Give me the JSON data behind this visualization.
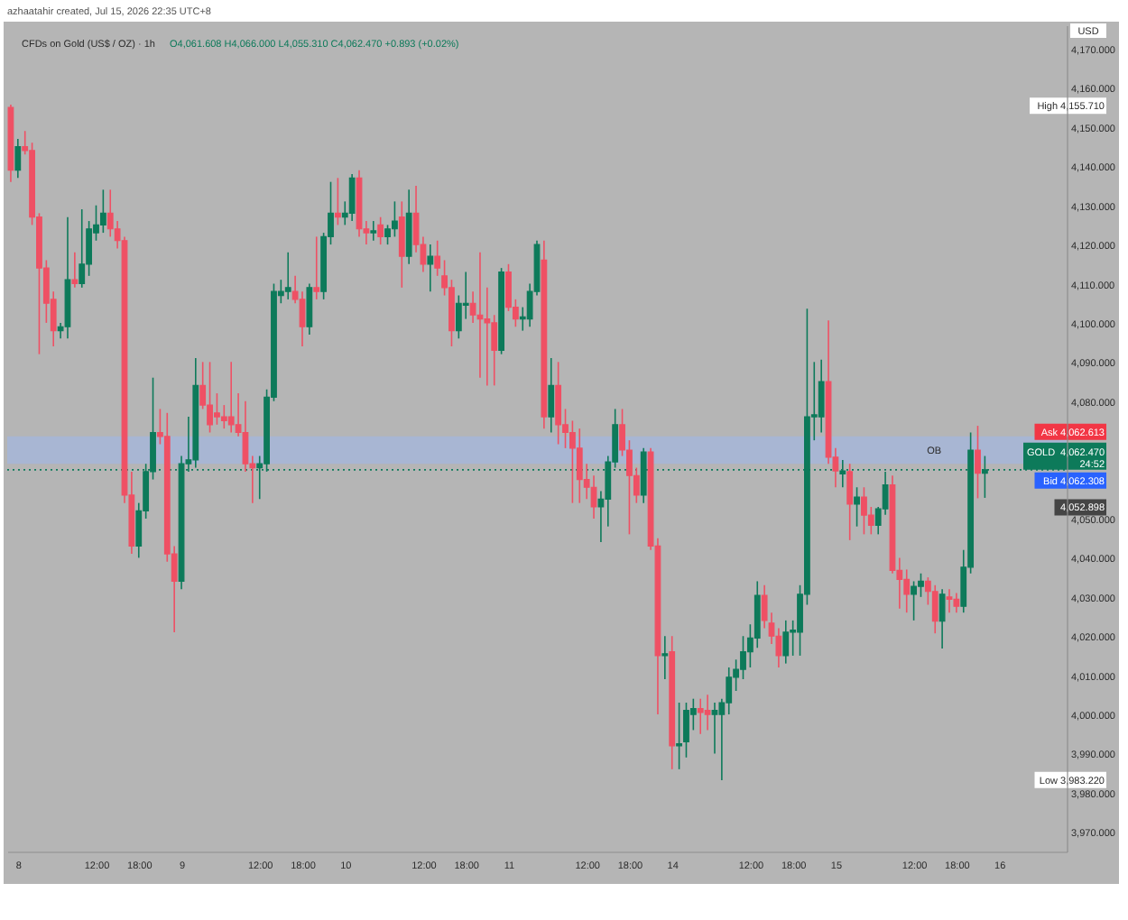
{
  "chart_data": {
    "type": "candlestick",
    "title": "CFDs on Gold (US$ / OZ) · 1h",
    "categories": [
      null,
      "8",
      null,
      null,
      null,
      null,
      null,
      null,
      null,
      null,
      null,
      null,
      "12:00",
      null,
      null,
      null,
      null,
      null,
      "18:00",
      null,
      null,
      null,
      null,
      null,
      "9",
      null,
      null,
      null,
      null,
      null,
      null,
      null,
      null,
      null,
      null,
      "12:00",
      null,
      null,
      null,
      null,
      null,
      "18:00",
      null,
      null,
      null,
      null,
      null,
      "10",
      null,
      null,
      null,
      null,
      null,
      null,
      null,
      null,
      null,
      null,
      "12:00",
      null,
      null,
      null,
      null,
      null,
      "18:00",
      null,
      null,
      null,
      null,
      null,
      "11",
      null,
      null,
      null,
      null,
      null,
      null,
      null,
      null,
      null,
      null,
      "12:00",
      null,
      null,
      null,
      null,
      null,
      "18:00",
      null,
      null,
      null,
      null,
      null,
      "14",
      null,
      null,
      null,
      null,
      null,
      null,
      null,
      null,
      null,
      null,
      "12:00",
      null,
      null,
      null,
      null,
      null,
      "18:00",
      null,
      null,
      null,
      null,
      null,
      "15",
      null,
      null,
      null,
      null,
      null,
      null,
      null,
      null,
      null,
      null,
      "12:00",
      null,
      null,
      null,
      null,
      null,
      "18:00",
      null,
      null,
      null,
      null,
      null,
      "16",
      null,
      null,
      null,
      null,
      null,
      null,
      null,
      null,
      null
    ],
    "ohlc": [
      [
        4155,
        4155.71,
        4136,
        4139
      ],
      [
        4139,
        4147,
        4137,
        4145
      ],
      [
        4145,
        4149,
        4143,
        4144
      ],
      [
        4144,
        4146,
        4125,
        4127
      ],
      [
        4127,
        4128,
        4092,
        4114
      ],
      [
        4114,
        4116,
        4100,
        4105
      ],
      [
        4106,
        4108,
        4094,
        4098
      ],
      [
        4098,
        4100,
        4096,
        4099
      ],
      [
        4099,
        4127,
        4096,
        4111
      ],
      [
        4111,
        4118,
        4109,
        4110
      ],
      [
        4110,
        4129,
        4109,
        4115
      ],
      [
        4115,
        4126,
        4112,
        4124
      ],
      [
        4123,
        4130,
        4121,
        4125
      ],
      [
        4125,
        4134,
        4123,
        4128
      ],
      [
        4128,
        4134,
        4122,
        4124
      ],
      [
        4124,
        4126,
        4119,
        4121
      ],
      [
        4121,
        4122,
        4054,
        4056
      ],
      [
        4056,
        4062,
        4041,
        4043
      ],
      [
        4043,
        4054,
        4040,
        4052
      ],
      [
        4052,
        4064,
        4050,
        4062
      ],
      [
        4062,
        4086,
        4060,
        4072
      ],
      [
        4072,
        4078,
        4069,
        4071
      ],
      [
        4071,
        4077,
        4039,
        4041
      ],
      [
        4041,
        4043,
        4021,
        4034
      ],
      [
        4034,
        4066,
        4032,
        4064
      ],
      [
        4064,
        4076,
        4062,
        4065
      ],
      [
        4065,
        4091,
        4063,
        4084
      ],
      [
        4084,
        4090,
        4078,
        4079
      ],
      [
        4079,
        4090,
        4072,
        4074
      ],
      [
        4077,
        4082,
        4074,
        4076
      ],
      [
        4076,
        4079,
        4073,
        4075
      ],
      [
        4076,
        4090,
        4072,
        4074
      ],
      [
        4074,
        4082,
        4071,
        4072
      ],
      [
        4072,
        4080,
        4062,
        4064
      ],
      [
        4064,
        4066,
        4054,
        4063
      ],
      [
        4063,
        4066,
        4055,
        4064
      ],
      [
        4064,
        4083,
        4062,
        4081
      ],
      [
        4081,
        4110,
        4080,
        4108
      ],
      [
        4107,
        4111,
        4105,
        4108
      ],
      [
        4108,
        4118,
        4106,
        4109
      ],
      [
        4108,
        4112,
        4105,
        4106
      ],
      [
        4106,
        4108,
        4094,
        4099
      ],
      [
        4099,
        4110,
        4097,
        4109
      ],
      [
        4109,
        4122,
        4106,
        4108
      ],
      [
        4108,
        4123,
        4106,
        4122
      ],
      [
        4122,
        4136,
        4120,
        4128
      ],
      [
        4128,
        4137,
        4125,
        4127
      ],
      [
        4127,
        4131,
        4125,
        4128
      ],
      [
        4128,
        4138,
        4126,
        4137
      ],
      [
        4137,
        4139,
        4122,
        4124
      ],
      [
        4124,
        4126,
        4120,
        4123
      ],
      [
        4123,
        4126,
        4121,
        4123.5
      ],
      [
        4125,
        4127,
        4120,
        4122
      ],
      [
        4122,
        4125,
        4120,
        4124
      ],
      [
        4124,
        4131,
        4122,
        4126
      ],
      [
        4127,
        4131,
        4109,
        4117
      ],
      [
        4117,
        4134,
        4115,
        4128
      ],
      [
        4128,
        4135,
        4118,
        4120
      ],
      [
        4120,
        4122,
        4113,
        4115
      ],
      [
        4115,
        4120,
        4108,
        4117
      ],
      [
        4117,
        4121,
        4112,
        4114
      ],
      [
        4112,
        4116,
        4107,
        4109
      ],
      [
        4109,
        4111,
        4094,
        4098
      ],
      [
        4098,
        4107,
        4096,
        4105
      ],
      [
        4104.5,
        4113,
        4101,
        4105
      ],
      [
        4105,
        4108,
        4100,
        4102
      ],
      [
        4102,
        4118,
        4086,
        4101
      ],
      [
        4101,
        4109,
        4084,
        4100
      ],
      [
        4100,
        4102,
        4084,
        4093
      ],
      [
        4093,
        4114,
        4092,
        4113
      ],
      [
        4113,
        4115,
        4103,
        4104
      ],
      [
        4104,
        4106,
        4099,
        4101
      ],
      [
        4101,
        4104,
        4098,
        4101.5
      ],
      [
        4101,
        4110,
        4099,
        4108
      ],
      [
        4108,
        4121,
        4107,
        4120
      ],
      [
        4116,
        4121,
        4073,
        4076
      ],
      [
        4076,
        4091,
        4072,
        4084
      ],
      [
        4084,
        4090,
        4069,
        4074
      ],
      [
        4074,
        4078,
        4068,
        4072
      ],
      [
        4072,
        4075,
        4054,
        4068
      ],
      [
        4068,
        4073,
        4054,
        4060
      ],
      [
        4060,
        4064,
        4055,
        4058
      ],
      [
        4058,
        4061,
        4050,
        4053
      ],
      [
        4053,
        4057,
        4044,
        4055
      ],
      [
        4055,
        4066,
        4048,
        4064.5
      ],
      [
        4064.5,
        4078,
        4063,
        4074
      ],
      [
        4074,
        4078,
        4066,
        4067.5
      ],
      [
        4067.5,
        4070,
        4046,
        4061
      ],
      [
        4061,
        4063,
        4054,
        4056
      ],
      [
        4056,
        4068,
        4054,
        4067
      ],
      [
        4067,
        4068,
        4042,
        4043
      ],
      [
        4043,
        4045,
        4000,
        4015
      ],
      [
        4015,
        4020,
        4009,
        4015.5
      ],
      [
        4016,
        4020,
        3986,
        3992
      ],
      [
        3992,
        4003,
        3986,
        3992.5
      ],
      [
        3993,
        4003,
        3989,
        4001
      ],
      [
        4000,
        4004,
        3996,
        4001.5
      ],
      [
        4001.5,
        4004,
        3995,
        4000.5
      ],
      [
        4001,
        4005,
        3996,
        4000
      ],
      [
        4000,
        4003,
        3990,
        4001
      ],
      [
        4000,
        4004,
        3983.22,
        4003
      ],
      [
        4003,
        4012,
        4000,
        4009.5
      ],
      [
        4009.5,
        4014,
        4006,
        4011.5
      ],
      [
        4011.5,
        4020,
        4009,
        4016
      ],
      [
        4016,
        4023,
        4012,
        4019.5
      ],
      [
        4019.5,
        4034,
        4017,
        4030.4
      ],
      [
        4030.4,
        4033,
        4022,
        4024
      ],
      [
        4023.3,
        4026,
        4018,
        4020
      ],
      [
        4020,
        4022,
        4012,
        4015
      ],
      [
        4015,
        4024,
        4013,
        4021
      ],
      [
        4021,
        4024,
        4015,
        4021.5
      ],
      [
        4021,
        4033,
        4015,
        4030.7
      ],
      [
        4030.7,
        4103.6,
        4028,
        4076
      ],
      [
        4076,
        4090,
        4070,
        4076.5
      ],
      [
        4076,
        4090.6,
        4072,
        4085
      ],
      [
        4085,
        4100.6,
        4064,
        4065.7
      ],
      [
        4065.7,
        4068,
        4058,
        4062.2
      ],
      [
        4061.4,
        4065,
        4058,
        4062.2
      ],
      [
        4062,
        4064,
        4044.5,
        4053.7
      ],
      [
        4053.7,
        4058,
        4048,
        4055.5
      ],
      [
        4055.5,
        4058,
        4046,
        4050.9
      ],
      [
        4050.9,
        4053,
        4046,
        4048.3
      ],
      [
        4048.3,
        4053,
        4046,
        4052.5
      ],
      [
        4052.5,
        4062,
        4051,
        4058.6
      ],
      [
        4058.6,
        4061,
        4036,
        4036.8
      ],
      [
        4036.8,
        4040,
        4027,
        4034.5
      ],
      [
        4034.5,
        4037,
        4026,
        4030.7
      ],
      [
        4030.7,
        4034,
        4024,
        4032.7
      ],
      [
        4032.7,
        4036,
        4030,
        4034
      ],
      [
        4034,
        4035,
        4028,
        4031.4
      ],
      [
        4031.4,
        4033,
        4020.7,
        4023.8
      ],
      [
        4023.8,
        4032,
        4016.8,
        4030.7
      ],
      [
        4030,
        4032,
        4026,
        4029.4
      ],
      [
        4029.4,
        4031,
        4026,
        4027.6
      ],
      [
        4027.6,
        4042,
        4026,
        4037.6
      ],
      [
        4037.6,
        4072,
        4036,
        4067.5
      ],
      [
        4067.5,
        4073.7,
        4055.2,
        4061.6
      ],
      [
        4061.608,
        4066,
        4055.31,
        4062.47
      ],
      null,
      null,
      null,
      null,
      null,
      null,
      null,
      null,
      null,
      null,
      null
    ],
    "colors": [
      "#ef5064",
      "#0d7a5a",
      "#ef5064",
      "#ef5064",
      "#ef5064",
      "#ef5064",
      "#ef5064",
      "#0d7a5a",
      "#0d7a5a",
      "#ef5064",
      "#0d7a5a",
      "#0d7a5a",
      "#0d7a5a",
      "#0d7a5a",
      "#ef5064",
      "#ef5064",
      "#ef5064",
      "#ef5064",
      "#0d7a5a",
      "#0d7a5a",
      "#0d7a5a",
      "#ef5064",
      "#ef5064",
      "#ef5064",
      "#0d7a5a",
      "#0d7a5a",
      "#0d7a5a",
      "#ef5064",
      "#ef5064",
      "#ef5064",
      "#ef5064",
      "#ef5064",
      "#ef5064",
      "#ef5064",
      "#ef5064",
      "#0d7a5a",
      "#0d7a5a",
      "#0d7a5a",
      "#0d7a5a",
      "#0d7a5a",
      "#ef5064",
      "#ef5064",
      "#0d7a5a",
      "#ef5064",
      "#0d7a5a",
      "#0d7a5a",
      "#ef5064",
      "#0d7a5a",
      "#0d7a5a",
      "#ef5064",
      "#ef5064",
      "#0d7a5a",
      "#ef5064",
      "#0d7a5a",
      "#0d7a5a",
      "#ef5064",
      "#0d7a5a",
      "#ef5064",
      "#ef5064",
      "#0d7a5a",
      "#ef5064",
      "#ef5064",
      "#ef5064",
      "#0d7a5a",
      "#0d7a5a",
      "#ef5064",
      "#ef5064",
      "#ef5064",
      "#ef5064",
      "#0d7a5a",
      "#ef5064",
      "#ef5064",
      "#0d7a5a",
      "#0d7a5a",
      "#0d7a5a",
      "#ef5064",
      "#0d7a5a",
      "#ef5064",
      "#ef5064",
      "#ef5064",
      "#ef5064",
      "#ef5064",
      "#ef5064",
      "#0d7a5a",
      "#0d7a5a",
      "#0d7a5a",
      "#ef5064",
      "#ef5064",
      "#ef5064",
      "#0d7a5a",
      "#ef5064",
      "#ef5064",
      "#0d7a5a",
      "#ef5064",
      "#0d7a5a",
      "#0d7a5a",
      "#0d7a5a",
      "#ef5064",
      "#ef5064",
      "#0d7a5a",
      "#0d7a5a",
      "#0d7a5a",
      "#0d7a5a",
      "#0d7a5a",
      "#0d7a5a",
      "#0d7a5a",
      "#ef5064",
      "#ef5064",
      "#ef5064",
      "#0d7a5a",
      "#0d7a5a",
      "#0d7a5a",
      "#0d7a5a",
      "#0d7a5a",
      "#0d7a5a",
      "#ef5064",
      "#ef5064",
      "#0d7a5a",
      "#ef5064",
      "#0d7a5a",
      "#ef5064",
      "#ef5064",
      "#0d7a5a",
      "#0d7a5a",
      "#ef5064",
      "#ef5064",
      "#ef5064",
      "#0d7a5a",
      "#0d7a5a",
      "#ef5064",
      "#ef5064",
      "#0d7a5a",
      "#ef5064",
      "#ef5064",
      "#0d7a5a",
      "#0d7a5a",
      "#ef5064",
      "#0d7a5a",
      null,
      null,
      null,
      null,
      null,
      null,
      null,
      null,
      null,
      null,
      null
    ],
    "ylim": [
      3965,
      4176
    ],
    "yticks": [
      {
        "value": 3970,
        "label": "3,970.000"
      },
      {
        "value": 3980,
        "label": "3,980.000"
      },
      {
        "value": 3990,
        "label": "3,990.000"
      },
      {
        "value": 4000,
        "label": "4,000.000"
      },
      {
        "value": 4010,
        "label": "4,010.000"
      },
      {
        "value": 4020,
        "label": "4,020.000"
      },
      {
        "value": 4030,
        "label": "4,030.000"
      },
      {
        "value": 4040,
        "label": "4,040.000"
      },
      {
        "value": 4050,
        "label": "4,050.000"
      },
      {
        "value": 4080,
        "label": "4,080.000"
      },
      {
        "value": 4090,
        "label": "4,090.000"
      },
      {
        "value": 4100,
        "label": "4,100.000"
      },
      {
        "value": 4110,
        "label": "4,110.000"
      },
      {
        "value": 4120,
        "label": "4,120.000"
      },
      {
        "value": 4130,
        "label": "4,130.000"
      },
      {
        "value": 4140,
        "label": "4,140.000"
      },
      {
        "value": 4150,
        "label": "4,150.000"
      },
      {
        "value": 4160,
        "label": "4,160.000"
      },
      {
        "value": 4170,
        "label": "4,170.000"
      }
    ],
    "ref_lines": [
      {
        "axis": "y",
        "value": 4062.47,
        "label": "GOLD",
        "color": "#0d7a5a",
        "line_style": "dotted"
      }
    ],
    "bands": [
      {
        "axis": "y",
        "from": 4064,
        "to": 4071,
        "label": "OB",
        "color": "#a6b6d6"
      }
    ],
    "annotations": [
      "azhaatahir created, Jul 15, 2026 22:35 UTC+8",
      "O4,061.608 H4,066.000 L4,055.310 C4,062.470 +0.893 (+0.02%)",
      "USD",
      "High 4,155.710",
      "Ask 4,062.613",
      "4,062.470",
      "24:52",
      "Bid 4,062.308",
      "4,052.898",
      "Low 3,983.220"
    ]
  }
}
